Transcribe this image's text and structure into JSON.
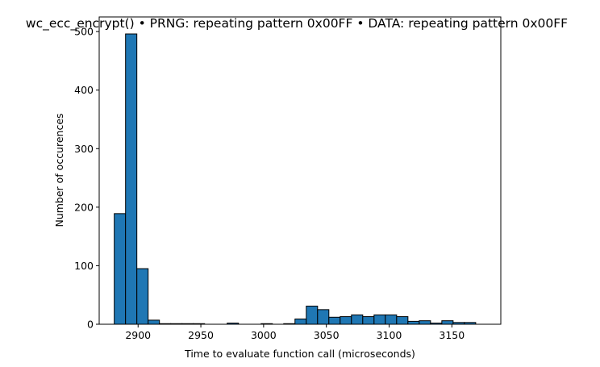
{
  "chart_data": {
    "type": "bar",
    "title": "wc_ecc_encrypt() • PRNG: repeating pattern 0x00FF • DATA: repeating pattern 0x00FF",
    "xlabel": "Time to evaluate function call (microseconds)",
    "ylabel": "Number of occurences",
    "xlim": [
      2869,
      3189
    ],
    "ylim": [
      0,
      525
    ],
    "xticks": [
      2900,
      2950,
      3000,
      3050,
      3100,
      3150
    ],
    "yticks": [
      0,
      100,
      200,
      300,
      400,
      500
    ],
    "bin_edges": [
      2881,
      2890,
      2899,
      2908,
      2917,
      2926,
      2935,
      2944,
      2953,
      2962,
      2971,
      2980,
      2989,
      2998,
      3007,
      3016,
      3025,
      3034,
      3043,
      3052,
      3061,
      3070,
      3079,
      3088,
      3097,
      3106,
      3115,
      3124,
      3133,
      3142,
      3151,
      3160,
      3169,
      3178
    ],
    "values": [
      189,
      496,
      95,
      7,
      1,
      1,
      1,
      1,
      0,
      0,
      2,
      0,
      0,
      1,
      0,
      1,
      9,
      31,
      25,
      12,
      13,
      16,
      13,
      16,
      16,
      13,
      5,
      6,
      2,
      6,
      3,
      3,
      0
    ],
    "bar_color": "#1f77b4",
    "edge_color": "#000000",
    "grid": false,
    "legend": "none"
  }
}
